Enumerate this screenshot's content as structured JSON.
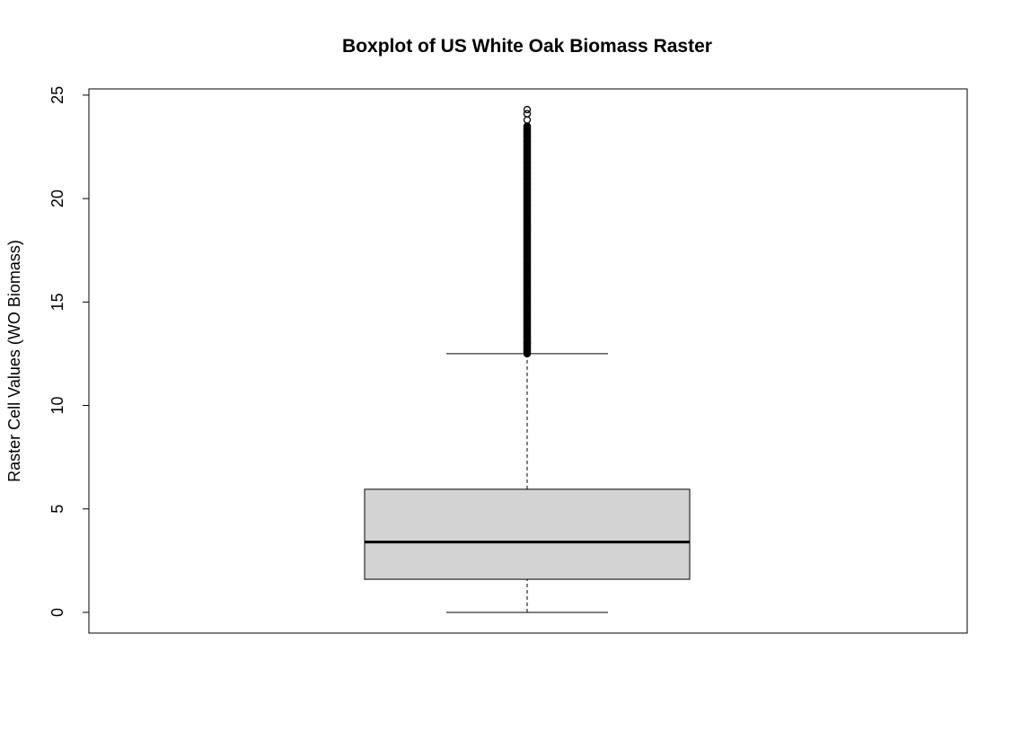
{
  "chart_data": {
    "type": "boxplot",
    "title": "Boxplot of US White Oak Biomass Raster",
    "ylabel": "Raster Cell Values (WO Biomass)",
    "xlabel": "",
    "ylim": [
      -1,
      25.3
    ],
    "y_ticks": [
      0,
      5,
      10,
      15,
      20,
      25
    ],
    "box": {
      "min": 0,
      "q1": 1.6,
      "median": 3.4,
      "q3": 5.95,
      "whisker_high": 12.5
    },
    "outliers": {
      "from": 12.5,
      "to": 23.5,
      "extra": [
        23.8,
        24.1,
        24.3
      ]
    },
    "colors": {
      "box_fill": "#d3d3d3",
      "stroke": "#000000"
    },
    "grid": false
  }
}
